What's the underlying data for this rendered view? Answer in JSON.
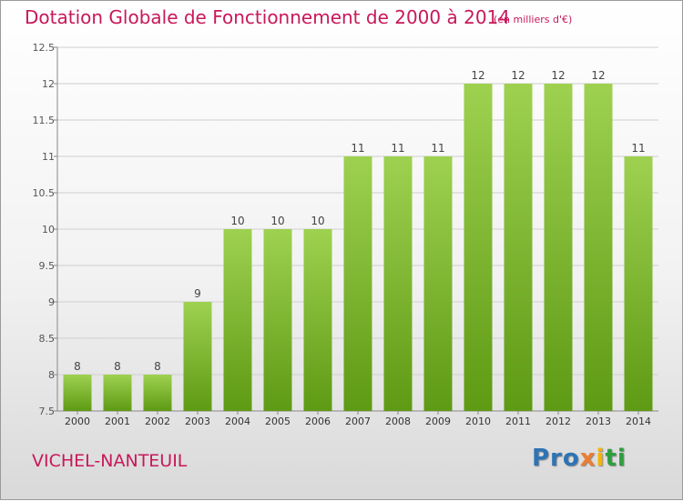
{
  "page": {
    "title": "Dotation Globale de Fonctionnement de 2000 à 2014",
    "subtitle": "(en milliers d'€)",
    "commune": "VICHEL-NANTEUIL",
    "logo": [
      "Pro",
      "x",
      "i",
      "ti"
    ]
  },
  "colors": {
    "title": "#c8185a",
    "bar_top": "#9ed150",
    "bar_bottom": "#5e9a14",
    "grid": "#cfcfcf"
  },
  "chart_data": {
    "type": "bar",
    "title": "Dotation Globale de Fonctionnement de 2000 à 2014",
    "subtitle": "(en milliers d'€)",
    "xlabel": "",
    "ylabel": "",
    "categories": [
      "2000",
      "2001",
      "2002",
      "2003",
      "2004",
      "2005",
      "2006",
      "2007",
      "2008",
      "2009",
      "2010",
      "2011",
      "2012",
      "2013",
      "2014"
    ],
    "values": [
      8,
      8,
      8,
      9,
      10,
      10,
      10,
      11,
      11,
      11,
      12,
      12,
      12,
      12,
      11
    ],
    "ylim": [
      7.5,
      12.5
    ],
    "yticks": [
      7.5,
      8,
      8.5,
      9,
      9.5,
      10,
      10.5,
      11,
      11.5,
      12,
      12.5
    ],
    "ytick_labels": [
      "7.5",
      "8",
      "8.5",
      "9",
      "9.5",
      "10",
      "10.5",
      "11",
      "11.5",
      "12",
      "12.5"
    ],
    "grid": true,
    "legend": "none"
  }
}
